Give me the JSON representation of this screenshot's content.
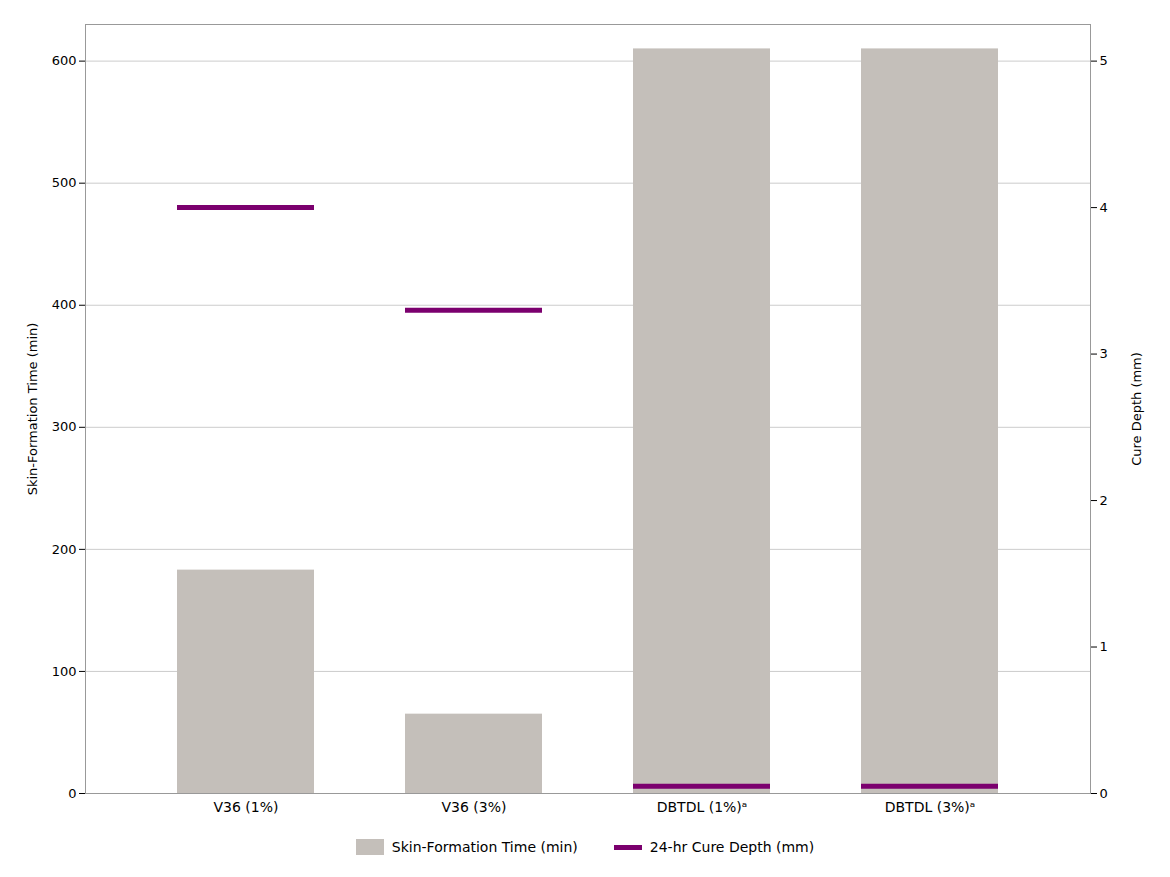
{
  "chart_data": {
    "type": "bar",
    "categories": [
      "V36 (1%)",
      "V36 (3%)",
      "DBTDL (1%)ᵃ",
      "DBTDL (3%)ᵃ"
    ],
    "series": [
      {
        "name": "Skin-Formation Time (min)",
        "type": "bar",
        "color": "#C4BFBA",
        "values": [
          183,
          65,
          610,
          610
        ]
      },
      {
        "name": "24-hr Cure Depth (mm)",
        "type": "tick",
        "axis": "y2",
        "color": "#7B006E",
        "values": [
          4.0,
          3.3,
          0.05,
          0.05
        ]
      }
    ],
    "ylabel": "Skin-Formation Time (min)",
    "y2label": "Cure Depth (mm)",
    "ylim": [
      0,
      630
    ],
    "yticks": [
      0,
      100,
      200,
      300,
      400,
      500,
      600
    ],
    "y2lim": [
      0,
      5.25
    ],
    "y2ticks": [
      0,
      1,
      2,
      3,
      4,
      5
    ],
    "grid": true,
    "legend": "bottom"
  }
}
